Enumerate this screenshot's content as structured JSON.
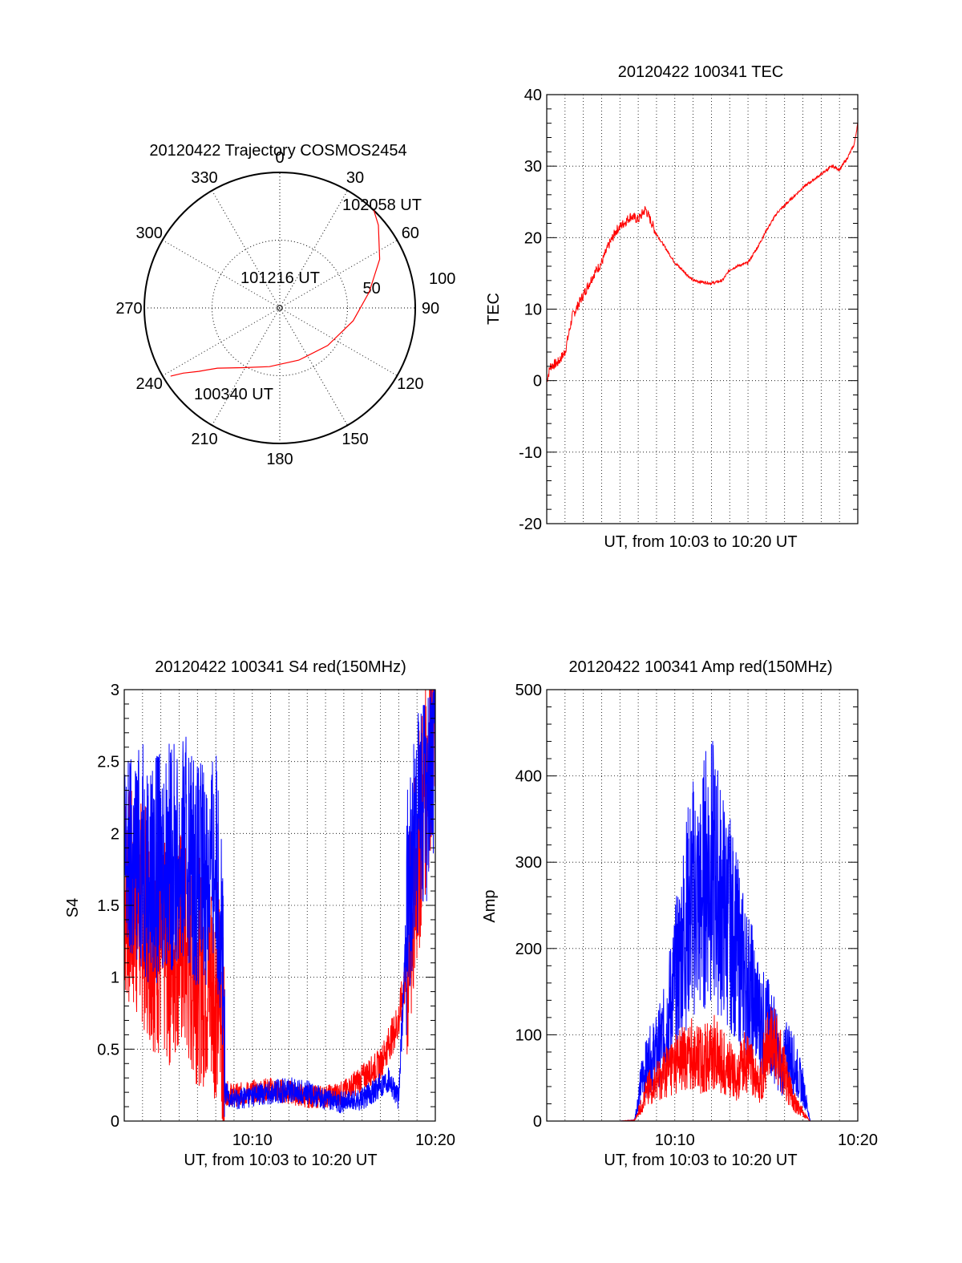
{
  "chart_data": [
    {
      "type": "polar",
      "title": "20120422 Trajectory COSMOS2454",
      "angle_labels": [
        "0",
        "30",
        "60",
        "90",
        "120",
        "150",
        "180",
        "210",
        "240",
        "270",
        "300",
        "330"
      ],
      "radial_labels": [
        "50",
        "100"
      ],
      "rlim": [
        0,
        100
      ],
      "grid": true,
      "trajectory": {
        "color": "#ff0000",
        "points": [
          {
            "az": 238,
            "r": 95
          },
          {
            "az": 236,
            "r": 86
          },
          {
            "az": 232,
            "r": 76
          },
          {
            "az": 226,
            "r": 64
          },
          {
            "az": 212,
            "r": 52
          },
          {
            "az": 190,
            "r": 44
          },
          {
            "az": 160,
            "r": 41
          },
          {
            "az": 128,
            "r": 45
          },
          {
            "az": 100,
            "r": 55
          },
          {
            "az": 80,
            "r": 67
          },
          {
            "az": 64,
            "r": 82
          },
          {
            "az": 50,
            "r": 95
          },
          {
            "az": 44,
            "r": 100
          }
        ]
      },
      "annotations": [
        "102058 UT",
        "101216 UT",
        "100340 UT"
      ]
    },
    {
      "type": "line",
      "title": "20120422 100341 TEC",
      "xlabel": "UT, from 10:03 to 10:20 UT",
      "ylabel": "TEC",
      "ylim": [
        -20,
        40
      ],
      "yticks": [
        "-20",
        "-10",
        "0",
        "10",
        "20",
        "30",
        "40"
      ],
      "grid": true,
      "series": [
        {
          "color": "#ff0000",
          "x": [
            0.0,
            0.2,
            0.6,
            1.0,
            1.4,
            1.8,
            2.2,
            2.6,
            3.0,
            3.4,
            3.8,
            4.2,
            4.6,
            5.0,
            5.4,
            6.0,
            7.0,
            8.0,
            9.0,
            9.6,
            10.0,
            10.4,
            11.0,
            11.6,
            12.0,
            12.6,
            13.2,
            14.0,
            14.8,
            15.6,
            16.0,
            16.4,
            16.8,
            17.0
          ],
          "y": [
            0,
            2,
            2.5,
            4,
            9,
            11,
            13,
            15,
            16.5,
            19,
            21,
            22,
            23,
            22.5,
            24,
            20.5,
            16.5,
            14,
            13.6,
            14,
            15.5,
            16,
            16.5,
            19,
            21,
            23.5,
            25,
            27,
            28.5,
            30,
            29.5,
            31,
            33,
            36
          ]
        }
      ]
    },
    {
      "type": "line",
      "title": "20120422 100341 S4 red(150MHz)",
      "xlabel": "UT, from 10:03 to 10:20 UT",
      "ylabel": "S4",
      "ylim": [
        0,
        3
      ],
      "yticks": [
        "0",
        "0.5",
        "1",
        "1.5",
        "2",
        "2.5",
        "3"
      ],
      "xticks": [
        "10:10",
        "10:20"
      ],
      "grid": true,
      "series": [
        {
          "color": "#ff0000",
          "x": [
            0.0,
            0.5,
            1.0,
            1.5,
            2.0,
            2.5,
            3.0,
            3.5,
            4.0,
            4.5,
            5.0,
            5.3,
            5.5,
            6.0,
            7.0,
            8.0,
            9.0,
            10.0,
            11.0,
            12.0,
            12.5,
            13.0,
            13.5,
            14.0,
            14.5,
            15.0,
            15.5,
            16.0,
            16.5,
            17.0
          ],
          "y": [
            1.6,
            1.5,
            1.45,
            1.3,
            1.2,
            1.15,
            1.3,
            1.1,
            1.05,
            1.0,
            0.95,
            0.85,
            0.2,
            0.18,
            0.2,
            0.22,
            0.2,
            0.17,
            0.17,
            0.2,
            0.25,
            0.3,
            0.35,
            0.4,
            0.55,
            0.7,
            1.1,
            1.8,
            2.4,
            2.9
          ]
        },
        {
          "color": "#0000ff",
          "x": [
            0.0,
            0.5,
            1.0,
            1.5,
            2.0,
            2.5,
            3.0,
            3.5,
            4.0,
            4.5,
            5.0,
            5.3,
            5.5,
            6.0,
            7.0,
            8.0,
            9.0,
            10.0,
            11.0,
            12.0,
            12.5,
            13.0,
            13.5,
            14.0,
            14.5,
            15.0,
            15.5,
            16.0,
            16.5,
            17.0
          ],
          "y": [
            1.75,
            1.8,
            1.85,
            1.7,
            1.8,
            1.85,
            1.8,
            1.9,
            1.7,
            1.75,
            1.8,
            1.5,
            0.2,
            0.15,
            0.18,
            0.2,
            0.22,
            0.2,
            0.15,
            0.13,
            0.14,
            0.15,
            0.2,
            0.25,
            0.3,
            0.15,
            1.6,
            2.0,
            2.3,
            2.6
          ]
        }
      ]
    },
    {
      "type": "line",
      "title": "20120422 100341 Amp red(150MHz)",
      "xlabel": "UT, from 10:03 to 10:20 UT",
      "ylabel": "Amp",
      "ylim": [
        0,
        500
      ],
      "yticks": [
        "0",
        "100",
        "200",
        "300",
        "400",
        "500"
      ],
      "xticks": [
        "10:10",
        "10:20"
      ],
      "grid": true,
      "series": [
        {
          "color": "#0000ff",
          "x": [
            0.0,
            2.0,
            4.0,
            4.8,
            5.2,
            5.6,
            6.0,
            6.4,
            6.8,
            7.2,
            7.6,
            8.0,
            8.4,
            8.8,
            9.2,
            9.6,
            10.0,
            10.4,
            10.8,
            11.2,
            11.6,
            12.0,
            12.4,
            12.8,
            13.2,
            13.6,
            14.0,
            14.4,
            15.0,
            17.0
          ],
          "y": [
            0,
            0,
            0,
            1,
            50,
            70,
            80,
            100,
            140,
            180,
            230,
            260,
            250,
            300,
            280,
            250,
            230,
            200,
            170,
            150,
            120,
            110,
            100,
            60,
            80,
            60,
            40,
            0,
            0,
            0
          ]
        },
        {
          "color": "#ff0000",
          "x": [
            0.0,
            2.0,
            4.0,
            4.8,
            5.2,
            5.6,
            6.0,
            6.4,
            6.8,
            7.2,
            7.6,
            8.0,
            8.4,
            8.8,
            9.2,
            9.6,
            10.0,
            10.4,
            10.8,
            11.2,
            11.6,
            12.0,
            12.4,
            12.8,
            13.2,
            13.6,
            14.0,
            14.4,
            15.0,
            17.0
          ],
          "y": [
            0,
            0,
            0,
            1,
            20,
            40,
            45,
            55,
            65,
            70,
            75,
            80,
            70,
            75,
            80,
            70,
            60,
            50,
            70,
            60,
            40,
            80,
            90,
            70,
            40,
            20,
            10,
            0,
            0,
            0
          ]
        }
      ]
    }
  ]
}
